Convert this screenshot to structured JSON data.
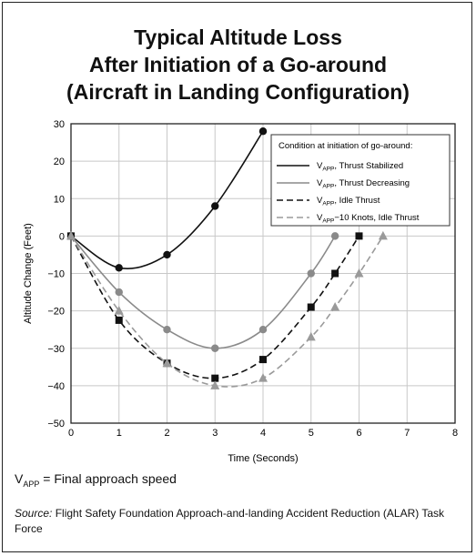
{
  "title_lines": [
    "Typical Altitude Loss",
    "After Initiation of a Go-around",
    "(Aircraft in Landing Configuration)"
  ],
  "footnote": {
    "symbol": "V",
    "subscript": "APP",
    "text": " = Final approach speed"
  },
  "source": {
    "prefix": "Source:",
    "text": " Flight Safety Foundation Approach-and-landing Accident Reduction (ALAR) Task Force"
  },
  "chart_data": {
    "type": "line",
    "xlabel": "Time (Seconds)",
    "ylabel": "Altitude Change (Feet)",
    "xlim": [
      0,
      8
    ],
    "ylim": [
      -50,
      30
    ],
    "xticks": [
      0,
      1,
      2,
      3,
      4,
      5,
      6,
      7,
      8
    ],
    "yticks": [
      30,
      20,
      10,
      0,
      -10,
      -20,
      -30,
      -40,
      -50
    ],
    "grid": true,
    "legend_title": "Condition at initiation of go-around:",
    "legend_position": "top-right",
    "series": [
      {
        "name_main": "V",
        "name_sub": "APP",
        "name_rest": ", Thrust Stabilized",
        "color": "#111111",
        "dash": "solid",
        "marker": "circle",
        "x": [
          0,
          1,
          2,
          3,
          4
        ],
        "y": [
          0,
          -8.5,
          -5,
          8,
          28
        ]
      },
      {
        "name_main": "V",
        "name_sub": "APP",
        "name_rest": ", Thrust Decreasing",
        "color": "#8a8a8a",
        "dash": "solid",
        "marker": "circle",
        "x": [
          0,
          1,
          2,
          3,
          4,
          5,
          5.5
        ],
        "y": [
          0,
          -15,
          -25,
          -30,
          -25,
          -10,
          0
        ]
      },
      {
        "name_main": "V",
        "name_sub": "APP",
        "name_rest": ", Idle Thrust",
        "color": "#111111",
        "dash": "dashed",
        "marker": "square",
        "x": [
          0,
          1,
          2,
          3,
          4,
          5,
          5.5,
          6
        ],
        "y": [
          0,
          -22.5,
          -34,
          -38,
          -33,
          -19,
          -10,
          0
        ]
      },
      {
        "name_main": "V",
        "name_sub": "APP",
        "name_rest": "−10 Knots, Idle Thrust",
        "color": "#9a9a9a",
        "dash": "dashed",
        "marker": "triangle",
        "x": [
          0,
          1,
          2,
          3,
          4,
          5,
          5.5,
          6,
          6.5
        ],
        "y": [
          0,
          -20,
          -34,
          -40,
          -38,
          -27,
          -19,
          -10,
          0
        ]
      }
    ]
  }
}
